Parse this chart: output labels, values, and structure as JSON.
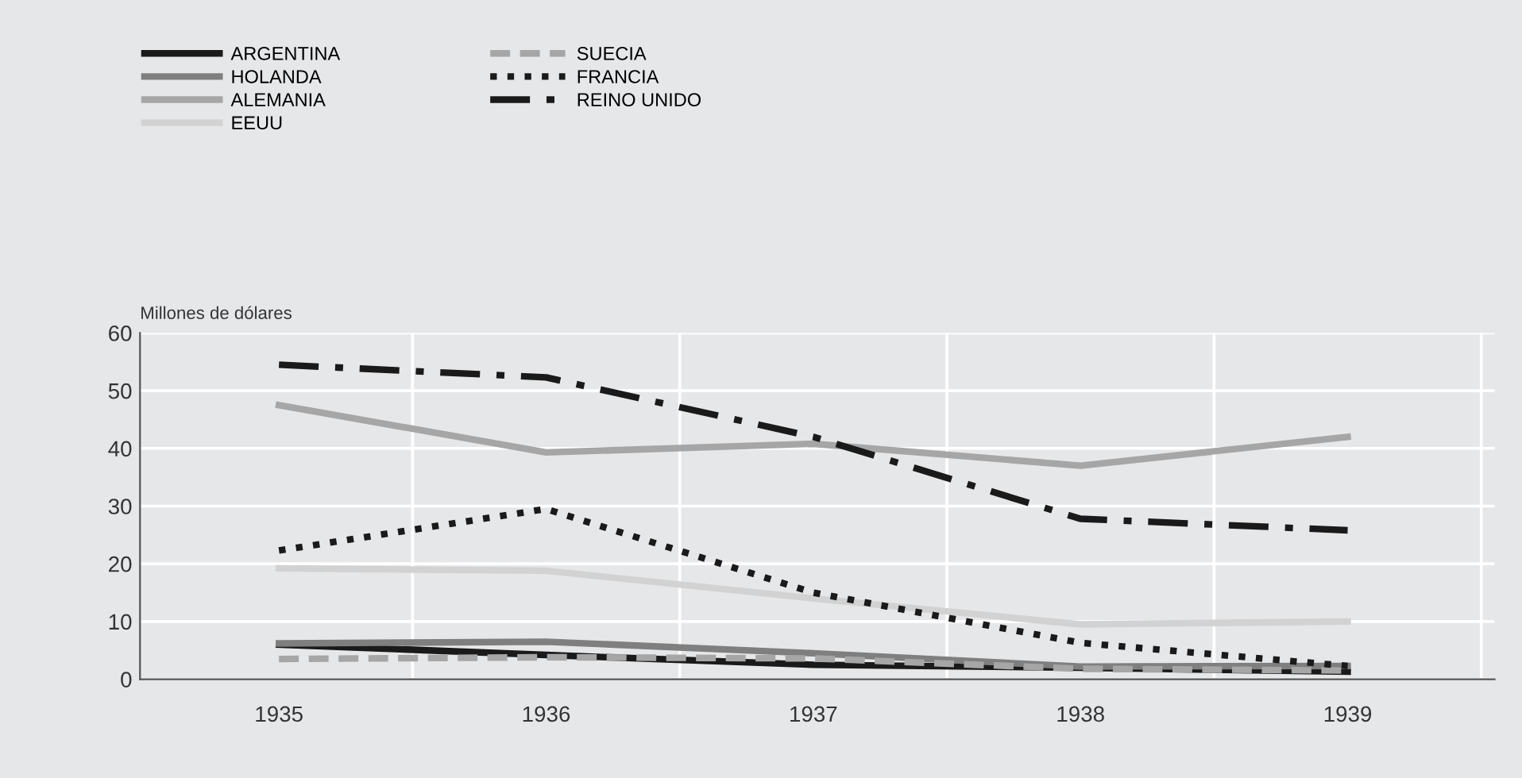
{
  "chart_data": {
    "type": "line",
    "ylabel": "Millones de dólares",
    "categories": [
      "1935",
      "1936",
      "1937",
      "1938",
      "1939"
    ],
    "ylim": [
      0,
      60
    ],
    "yticks": [
      0,
      10,
      20,
      30,
      40,
      50,
      60
    ],
    "grid": true,
    "legend": "top left",
    "marker": "none",
    "series": [
      {
        "name": "ARGENTINA",
        "color": "#1a1a1a",
        "line_style": "solid",
        "values": [
          6,
          4.2,
          2.5,
          2,
          1.3
        ]
      },
      {
        "name": "HOLANDA",
        "color": "#7f7f7f",
        "line_style": "solid",
        "values": [
          6.2,
          6.5,
          4.5,
          2.2,
          2.3
        ]
      },
      {
        "name": "ALEMANIA",
        "color": "#a6a6a6",
        "line_style": "solid",
        "values": [
          47.5,
          39.3,
          40.8,
          37,
          42
        ]
      },
      {
        "name": "EEUU",
        "color": "#d2d2d2",
        "line_style": "solid",
        "values": [
          19.2,
          18.8,
          14,
          9.5,
          10
        ]
      },
      {
        "name": "SUECIA",
        "color": "#a6a6a6",
        "line_style": "dashed",
        "values": [
          3.5,
          3.8,
          3.6,
          1.8,
          1.5
        ]
      },
      {
        "name": "FRANCIA",
        "color": "#1a1a1a",
        "line_style": "dotted",
        "values": [
          22.3,
          29.5,
          15,
          6.3,
          2.3
        ]
      },
      {
        "name": "REINO UNIDO",
        "color": "#1a1a1a",
        "line_style": "dashdot",
        "values": [
          54.5,
          52.3,
          42,
          27.8,
          25.8
        ]
      }
    ]
  }
}
